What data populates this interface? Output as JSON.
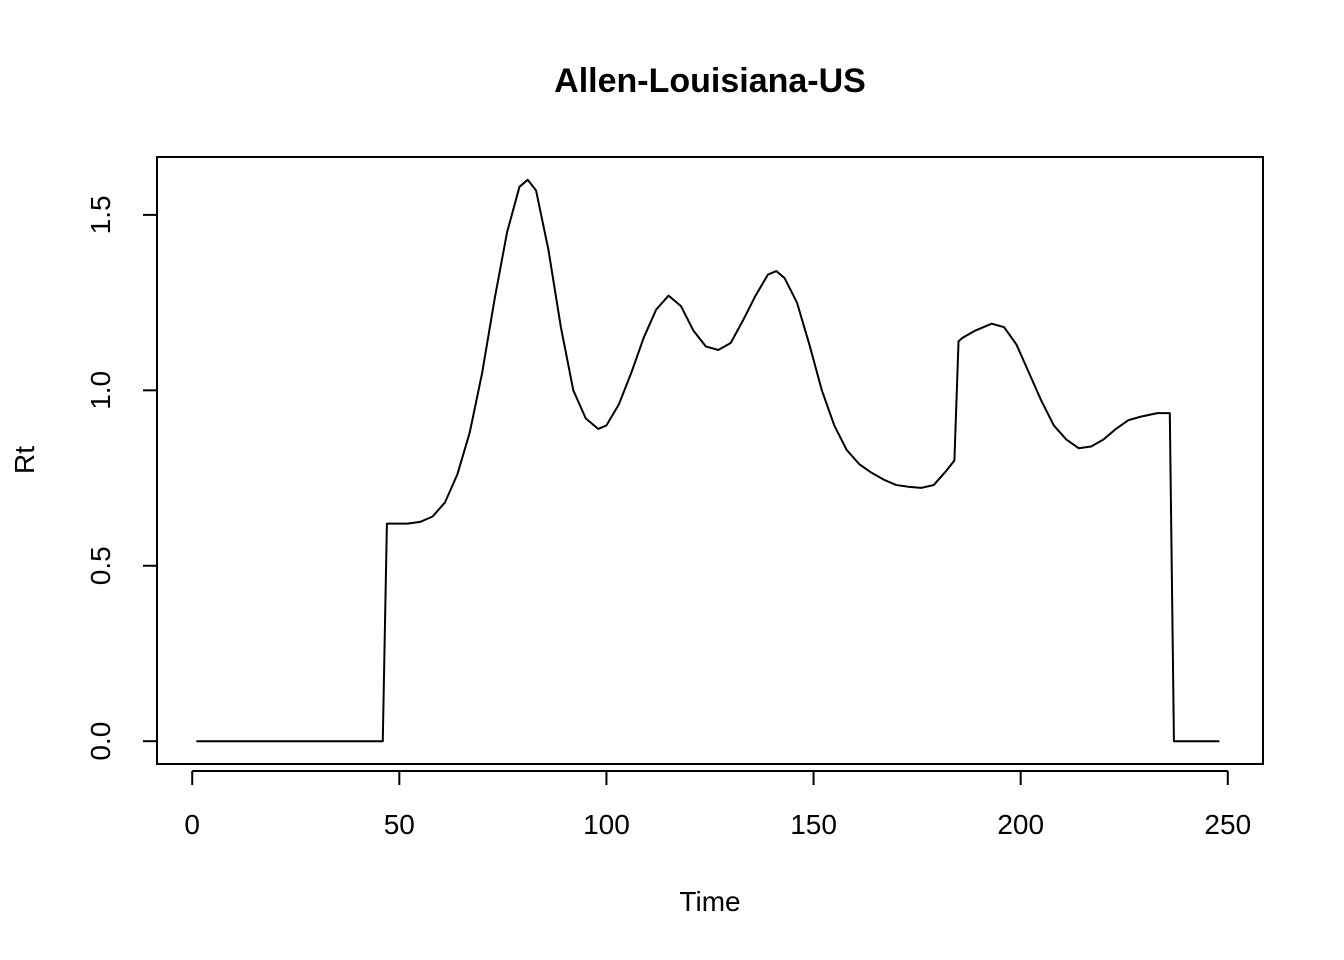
{
  "chart_data": {
    "type": "line",
    "title": "Allen-Louisiana-US",
    "xlabel": "Time",
    "ylabel": "Rt",
    "xlim": [
      -8.5,
      258.5
    ],
    "ylim": [
      -0.065,
      1.665
    ],
    "x_ticks": [
      0,
      50,
      100,
      150,
      200,
      250
    ],
    "y_ticks": [
      0.0,
      0.5,
      1.0,
      1.5
    ],
    "x_tick_labels": [
      "0",
      "50",
      "100",
      "150",
      "200",
      "250"
    ],
    "y_tick_labels": [
      "0.0",
      "0.5",
      "1.0",
      "1.5"
    ],
    "grid": false,
    "legend": "none",
    "line_color": "#000000",
    "series": [
      {
        "x": [
          1,
          46,
          47,
          52,
          55,
          58,
          61,
          64,
          67,
          70,
          73,
          76,
          79,
          81,
          83,
          86,
          89,
          92,
          95,
          98,
          100,
          103,
          106,
          109,
          112,
          115,
          118,
          121,
          124,
          127,
          130,
          133,
          136,
          139,
          141,
          143,
          146,
          149,
          152,
          155,
          158,
          161,
          164,
          167,
          170,
          173,
          176,
          179,
          182,
          184,
          185,
          186,
          189,
          193,
          196,
          199,
          202,
          205,
          208,
          211,
          214,
          217,
          220,
          223,
          226,
          229,
          233,
          236,
          237,
          248
        ],
        "y": [
          0,
          0,
          0.62,
          0.62,
          0.625,
          0.64,
          0.68,
          0.76,
          0.88,
          1.05,
          1.26,
          1.45,
          1.58,
          1.6,
          1.57,
          1.4,
          1.18,
          1.0,
          0.92,
          0.89,
          0.9,
          0.96,
          1.05,
          1.15,
          1.23,
          1.27,
          1.24,
          1.17,
          1.125,
          1.115,
          1.135,
          1.2,
          1.27,
          1.33,
          1.34,
          1.32,
          1.25,
          1.13,
          1.0,
          0.9,
          0.83,
          0.79,
          0.765,
          0.745,
          0.73,
          0.725,
          0.722,
          0.73,
          0.77,
          0.8,
          1.14,
          1.15,
          1.17,
          1.19,
          1.18,
          1.13,
          1.05,
          0.97,
          0.9,
          0.86,
          0.835,
          0.84,
          0.86,
          0.89,
          0.915,
          0.925,
          0.935,
          0.935,
          0,
          0
        ]
      }
    ]
  }
}
